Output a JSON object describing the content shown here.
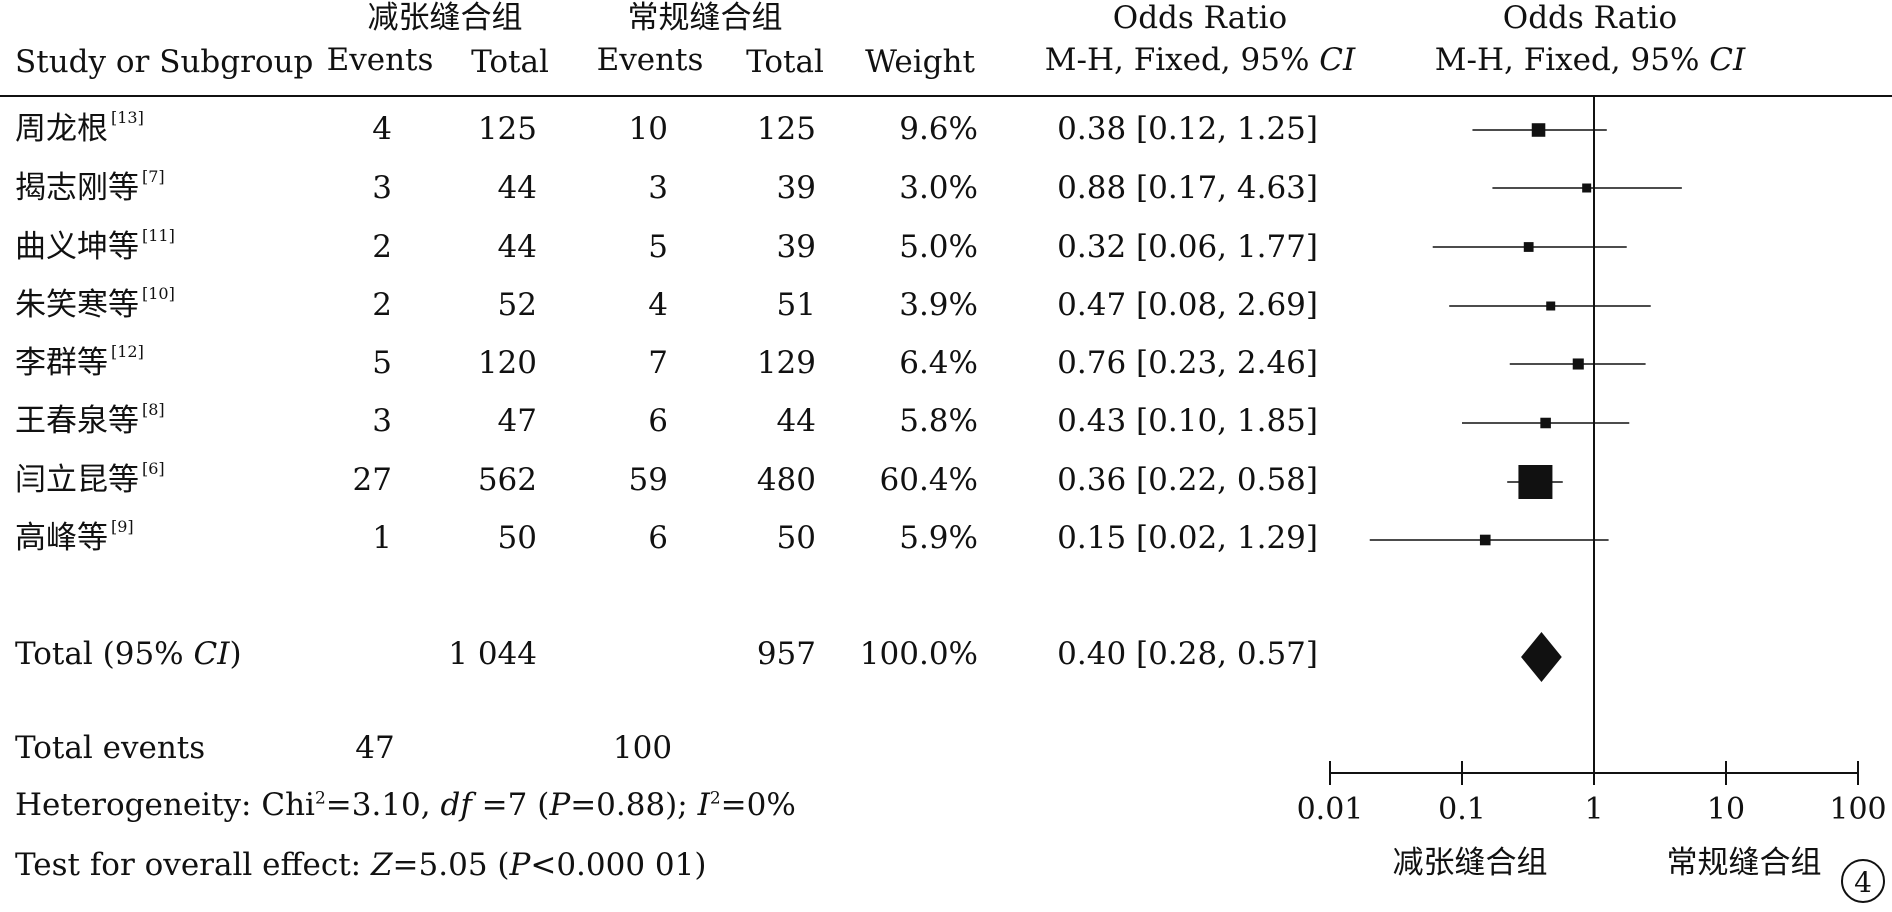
{
  "header": {
    "group1": "减张缝合组",
    "group2": "常规缝合组",
    "study_col": "Study or Subgroup",
    "events1": "Events",
    "total1": "Total",
    "events2": "Events",
    "total2": "Total",
    "weight": "Weight",
    "or_title": "Odds Ratio",
    "or_method": "M-H, Fixed, 95% ",
    "or_ci": "CI",
    "plot_title": "Odds Ratio",
    "plot_method": "M-H, Fixed, 95% ",
    "plot_ci": "CI"
  },
  "rows": [
    {
      "study": "周龙根",
      "ref": "[13]",
      "e1": "4",
      "t1": "125",
      "e2": "10",
      "t2": "125",
      "weight": "9.6%",
      "or_text": "0.38 [0.12, 1.25]"
    },
    {
      "study": "揭志刚等",
      "ref": "[7]",
      "e1": "3",
      "t1": "44",
      "e2": "3",
      "t2": "39",
      "weight": "3.0%",
      "or_text": "0.88 [0.17, 4.63]"
    },
    {
      "study": "曲义坤等",
      "ref": "[11]",
      "e1": "2",
      "t1": "44",
      "e2": "5",
      "t2": "39",
      "weight": "5.0%",
      "or_text": "0.32 [0.06, 1.77]"
    },
    {
      "study": "朱笑寒等",
      "ref": "[10]",
      "e1": "2",
      "t1": "52",
      "e2": "4",
      "t2": "51",
      "weight": "3.9%",
      "or_text": "0.47 [0.08, 2.69]"
    },
    {
      "study": "李群等",
      "ref": "[12]",
      "e1": "5",
      "t1": "120",
      "e2": "7",
      "t2": "129",
      "weight": "6.4%",
      "or_text": "0.76 [0.23, 2.46]"
    },
    {
      "study": "王春泉等",
      "ref": "[8]",
      "e1": "3",
      "t1": "47",
      "e2": "6",
      "t2": "44",
      "weight": "5.8%",
      "or_text": "0.43 [0.10, 1.85]"
    },
    {
      "study": "闫立昆等",
      "ref": "[6]",
      "e1": "27",
      "t1": "562",
      "e2": "59",
      "t2": "480",
      "weight": "60.4%",
      "or_text": "0.36 [0.22, 0.58]"
    },
    {
      "study": "高峰等",
      "ref": "[9]",
      "e1": "1",
      "t1": "50",
      "e2": "6",
      "t2": "50",
      "weight": "5.9%",
      "or_text": "0.15 [0.02, 1.29]"
    }
  ],
  "total": {
    "label_pre": "Total (95% ",
    "label_ci": "CI",
    "label_post": ")",
    "t1": "1 044",
    "t2": "957",
    "weight": "100.0%",
    "or_text": "0.40 [0.28, 0.57]"
  },
  "total_events": {
    "label": "Total events",
    "e1": "47",
    "e2": "100"
  },
  "heterogeneity": {
    "p1": "Heterogeneity: Chi",
    "sup1": "2",
    "p2": "=3.10, ",
    "df": "df",
    "p3": " =7 (",
    "P": "P",
    "p4": "=0.88); ",
    "I": "I",
    "sup2": "2",
    "p5": "=0%"
  },
  "overall": {
    "p1": "Test for overall effect: ",
    "Z": "Z",
    "p2": "=5.05 (",
    "P": "P",
    "p3": "<0.000 01)"
  },
  "badge": "4",
  "chart_data": {
    "type": "forest",
    "x_scale": "log",
    "xlim": [
      0.01,
      100
    ],
    "ticks": [
      0.01,
      0.1,
      1,
      10,
      100
    ],
    "tick_labels": [
      "0.01",
      "0.1",
      "1",
      "10",
      "100"
    ],
    "favours_left": "减张缝合组",
    "favours_right": "常规缝合组",
    "reference_line": 1,
    "studies": [
      {
        "or": 0.38,
        "lo": 0.12,
        "hi": 1.25,
        "weight": 9.6
      },
      {
        "or": 0.88,
        "lo": 0.17,
        "hi": 4.63,
        "weight": 3.0
      },
      {
        "or": 0.32,
        "lo": 0.06,
        "hi": 1.77,
        "weight": 5.0
      },
      {
        "or": 0.47,
        "lo": 0.08,
        "hi": 2.69,
        "weight": 3.9
      },
      {
        "or": 0.76,
        "lo": 0.23,
        "hi": 2.46,
        "weight": 6.4
      },
      {
        "or": 0.43,
        "lo": 0.1,
        "hi": 1.85,
        "weight": 5.8
      },
      {
        "or": 0.36,
        "lo": 0.22,
        "hi": 0.58,
        "weight": 60.4
      },
      {
        "or": 0.15,
        "lo": 0.02,
        "hi": 1.29,
        "weight": 5.9
      }
    ],
    "pooled": {
      "or": 0.4,
      "lo": 0.28,
      "hi": 0.57
    }
  }
}
